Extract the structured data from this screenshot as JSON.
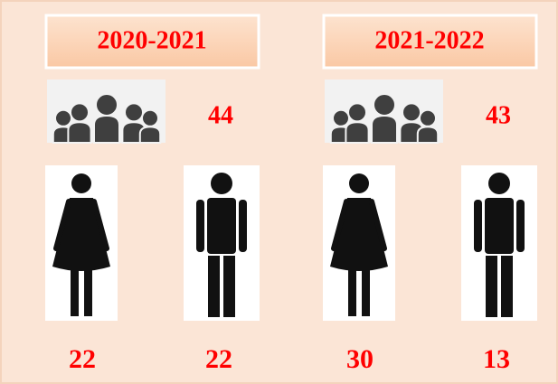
{
  "panels": [
    {
      "title": "2020-2021",
      "total": "44",
      "female": "22",
      "male": "22"
    },
    {
      "title": "2021-2022",
      "total": "43",
      "female": "30",
      "male": "13"
    }
  ]
}
